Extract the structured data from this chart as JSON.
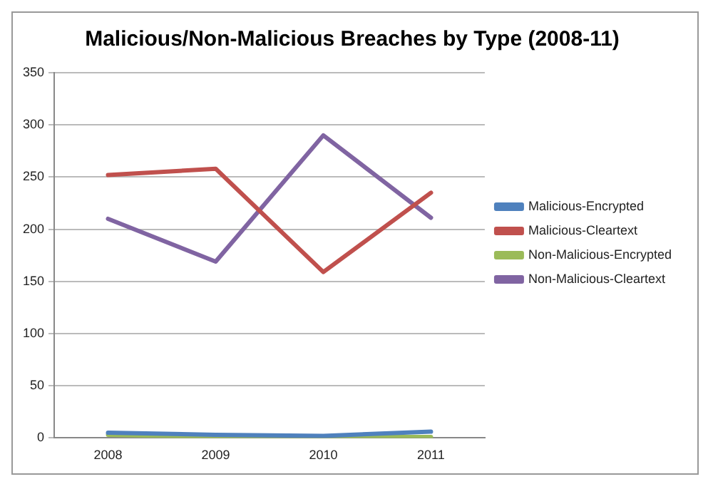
{
  "chart_data": {
    "type": "line",
    "title": "Malicious/Non-Malicious Breaches by Type (2008-11)",
    "categories": [
      "2008",
      "2009",
      "2010",
      "2011"
    ],
    "series": [
      {
        "name": "Malicious-Encrypted",
        "color": "#4f81bd",
        "values": [
          5,
          3,
          2,
          6
        ]
      },
      {
        "name": "Malicious-Cleartext",
        "color": "#c0504d",
        "values": [
          252,
          258,
          159,
          235
        ]
      },
      {
        "name": "Non-Malicious-Encrypted",
        "color": "#9bbb59",
        "values": [
          3,
          1,
          1,
          1
        ]
      },
      {
        "name": "Non-Malicious-Cleartext",
        "color": "#8064a2",
        "values": [
          210,
          169,
          290,
          211
        ]
      }
    ],
    "ylim": [
      0,
      350
    ],
    "yticks": [
      0,
      50,
      100,
      150,
      200,
      250,
      300,
      350
    ],
    "grid": "y",
    "legend": "right",
    "marker": "none",
    "line_style": "solid"
  }
}
